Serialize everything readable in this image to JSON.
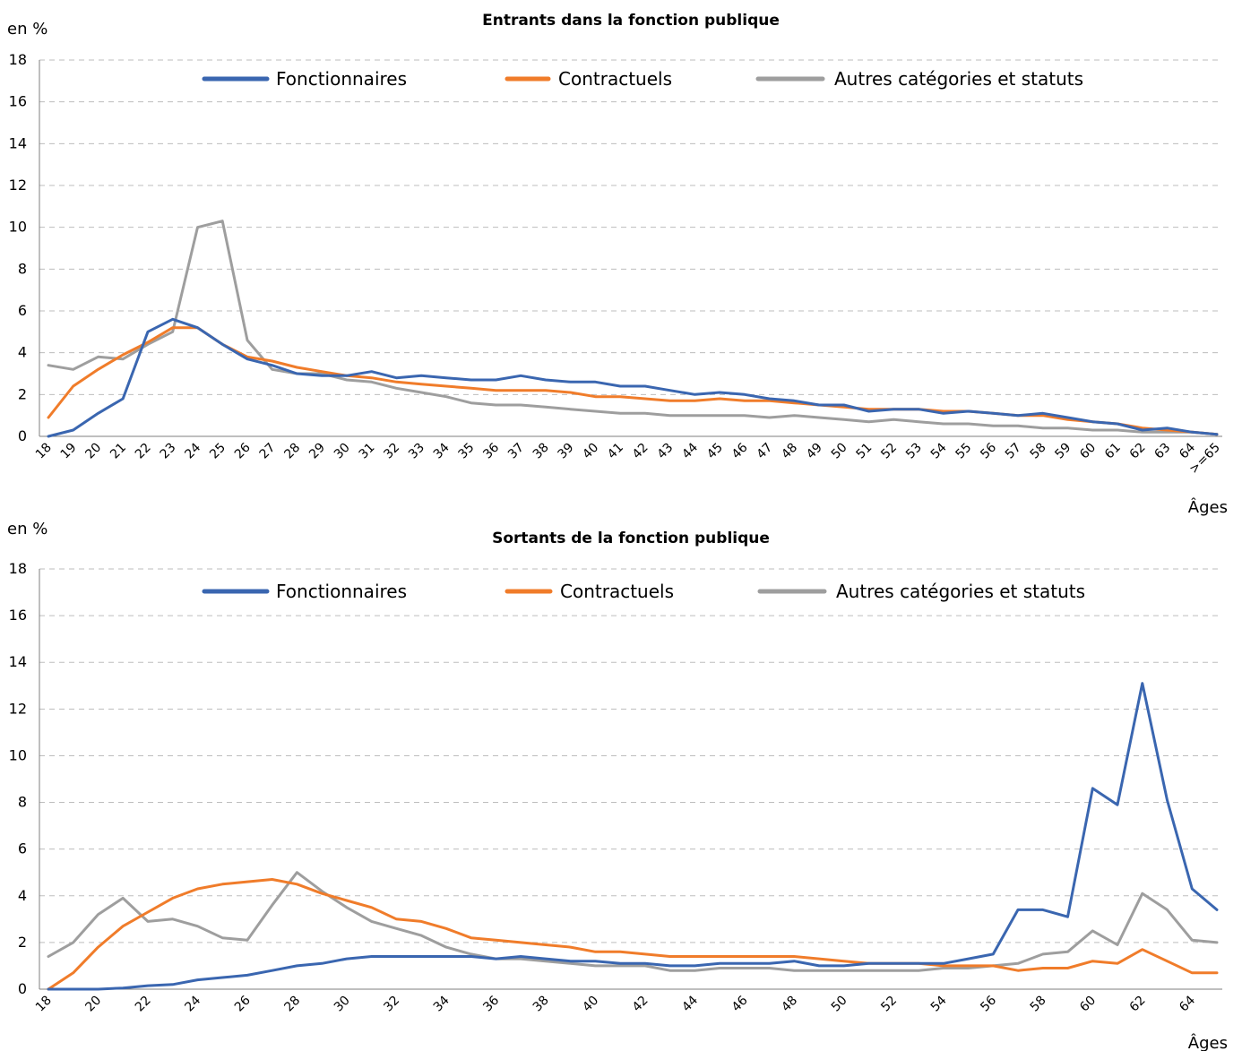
{
  "colors": {
    "fonctionnaires": "#3a66b0",
    "contractuels": "#f07c2a",
    "autres": "#9e9e9e"
  },
  "chart_data": [
    {
      "type": "line",
      "title": "Entrants dans la fonction publique",
      "ylabel": "en %",
      "xlabel": "Âges",
      "ylim": [
        0,
        18
      ],
      "yticks": [
        "0",
        "2",
        "4",
        "6",
        "8",
        "10",
        "12",
        "14",
        "16",
        "18"
      ],
      "grid": true,
      "legend_position": "top",
      "categories": [
        "18",
        "19",
        "20",
        "21",
        "22",
        "23",
        "24",
        "25",
        "26",
        "27",
        "28",
        "29",
        "30",
        "31",
        "32",
        "33",
        "34",
        "35",
        "36",
        "37",
        "38",
        "39",
        "40",
        "41",
        "42",
        "43",
        "44",
        "45",
        "46",
        "47",
        "48",
        "49",
        "50",
        "51",
        "52",
        "53",
        "54",
        "55",
        "56",
        "57",
        "58",
        "59",
        "60",
        "61",
        "62",
        "63",
        "64",
        ">=65"
      ],
      "tick_labels": [
        "18",
        "19",
        "20",
        "21",
        "22",
        "23",
        "24",
        "25",
        "26",
        "27",
        "28",
        "29",
        "30",
        "31",
        "32",
        "33",
        "34",
        "35",
        "36",
        "37",
        "38",
        "39",
        "40",
        "41",
        "42",
        "43",
        "44",
        "45",
        "46",
        "47",
        "48",
        "49",
        "50",
        "51",
        "52",
        "53",
        "54",
        "55",
        "56",
        "57",
        "58",
        "59",
        "60",
        "61",
        "62",
        "63",
        "64",
        ">=65"
      ],
      "series": [
        {
          "name": "Fonctionnaires",
          "color_key": "fonctionnaires",
          "values": [
            0.0,
            0.3,
            1.1,
            1.8,
            5.0,
            5.6,
            5.2,
            4.4,
            3.7,
            3.4,
            3.0,
            2.9,
            2.9,
            3.1,
            2.8,
            2.9,
            2.8,
            2.7,
            2.7,
            2.9,
            2.7,
            2.6,
            2.6,
            2.4,
            2.4,
            2.2,
            2.0,
            2.1,
            2.0,
            1.8,
            1.7,
            1.5,
            1.5,
            1.2,
            1.3,
            1.3,
            1.1,
            1.2,
            1.1,
            1.0,
            1.1,
            0.9,
            0.7,
            0.6,
            0.3,
            0.4,
            0.2,
            0.1
          ]
        },
        {
          "name": "Contractuels",
          "color_key": "contractuels",
          "values": [
            0.9,
            2.4,
            3.2,
            3.9,
            4.5,
            5.2,
            5.2,
            4.4,
            3.8,
            3.6,
            3.3,
            3.1,
            2.9,
            2.8,
            2.6,
            2.5,
            2.4,
            2.3,
            2.2,
            2.2,
            2.2,
            2.1,
            1.9,
            1.9,
            1.8,
            1.7,
            1.7,
            1.8,
            1.7,
            1.7,
            1.6,
            1.5,
            1.4,
            1.3,
            1.3,
            1.3,
            1.2,
            1.2,
            1.1,
            1.0,
            1.0,
            0.8,
            0.7,
            0.6,
            0.4,
            0.3,
            0.2,
            0.1
          ]
        },
        {
          "name": "Autres catégories et statuts",
          "color_key": "autres",
          "values": [
            3.4,
            3.2,
            3.8,
            3.7,
            4.4,
            5.0,
            10.0,
            10.3,
            4.6,
            3.2,
            3.0,
            3.0,
            2.7,
            2.6,
            2.3,
            2.1,
            1.9,
            1.6,
            1.5,
            1.5,
            1.4,
            1.3,
            1.2,
            1.1,
            1.1,
            1.0,
            1.0,
            1.0,
            1.0,
            0.9,
            1.0,
            0.9,
            0.8,
            0.7,
            0.8,
            0.7,
            0.6,
            0.6,
            0.5,
            0.5,
            0.4,
            0.4,
            0.3,
            0.3,
            0.2,
            0.2,
            0.2,
            0.1
          ]
        }
      ]
    },
    {
      "type": "line",
      "title": "Sortants de la fonction publique",
      "ylabel": "en %",
      "xlabel": "Âges",
      "ylim": [
        0,
        18
      ],
      "yticks": [
        "0",
        "2",
        "4",
        "6",
        "8",
        "10",
        "12",
        "14",
        "16",
        "18"
      ],
      "grid": true,
      "legend_position": "top",
      "categories": [
        "18",
        "19",
        "20",
        "21",
        "22",
        "23",
        "24",
        "25",
        "26",
        "27",
        "28",
        "29",
        "30",
        "31",
        "32",
        "33",
        "34",
        "35",
        "36",
        "37",
        "38",
        "39",
        "40",
        "41",
        "42",
        "43",
        "44",
        "45",
        "46",
        "47",
        "48",
        "49",
        "50",
        "51",
        "52",
        "53",
        "54",
        "55",
        "56",
        "57",
        "58",
        "59",
        "60",
        "61",
        "62",
        "63",
        "64",
        "65"
      ],
      "tick_labels": [
        "18",
        "",
        "20",
        "",
        "22",
        "",
        "24",
        "",
        "26",
        "",
        "28",
        "",
        "30",
        "",
        "32",
        "",
        "34",
        "",
        "36",
        "",
        "38",
        "",
        "40",
        "",
        "42",
        "",
        "44",
        "",
        "46",
        "",
        "48",
        "",
        "50",
        "",
        "52",
        "",
        "54",
        "",
        "56",
        "",
        "58",
        "",
        "60",
        "",
        "62",
        "",
        "64",
        ""
      ],
      "series": [
        {
          "name": "Fonctionnaires",
          "color_key": "fonctionnaires",
          "values": [
            0.0,
            0.0,
            0.0,
            0.05,
            0.15,
            0.2,
            0.4,
            0.5,
            0.6,
            0.8,
            1.0,
            1.1,
            1.3,
            1.4,
            1.4,
            1.4,
            1.4,
            1.4,
            1.3,
            1.4,
            1.3,
            1.2,
            1.2,
            1.1,
            1.1,
            1.0,
            1.0,
            1.1,
            1.1,
            1.1,
            1.2,
            1.0,
            1.0,
            1.1,
            1.1,
            1.1,
            1.1,
            1.3,
            1.5,
            3.4,
            3.4,
            3.1,
            8.6,
            7.9,
            13.1,
            8.1,
            4.3,
            3.4
          ]
        },
        {
          "name": "Contractuels",
          "color_key": "contractuels",
          "values": [
            0.0,
            0.7,
            1.8,
            2.7,
            3.3,
            3.9,
            4.3,
            4.5,
            4.6,
            4.7,
            4.5,
            4.1,
            3.8,
            3.5,
            3.0,
            2.9,
            2.6,
            2.2,
            2.1,
            2.0,
            1.9,
            1.8,
            1.6,
            1.6,
            1.5,
            1.4,
            1.4,
            1.4,
            1.4,
            1.4,
            1.4,
            1.3,
            1.2,
            1.1,
            1.1,
            1.1,
            1.0,
            1.0,
            1.0,
            0.8,
            0.9,
            0.9,
            1.2,
            1.1,
            1.7,
            1.2,
            0.7,
            0.7
          ]
        },
        {
          "name": "Autres catégories et statuts",
          "color_key": "autres",
          "values": [
            1.4,
            2.0,
            3.2,
            3.9,
            2.9,
            3.0,
            2.7,
            2.2,
            2.1,
            3.6,
            5.0,
            4.2,
            3.5,
            2.9,
            2.6,
            2.3,
            1.8,
            1.5,
            1.3,
            1.3,
            1.2,
            1.1,
            1.0,
            1.0,
            1.0,
            0.8,
            0.8,
            0.9,
            0.9,
            0.9,
            0.8,
            0.8,
            0.8,
            0.8,
            0.8,
            0.8,
            0.9,
            0.9,
            1.0,
            1.1,
            1.5,
            1.6,
            2.5,
            1.9,
            4.1,
            3.4,
            2.1,
            2.0
          ]
        }
      ]
    }
  ]
}
